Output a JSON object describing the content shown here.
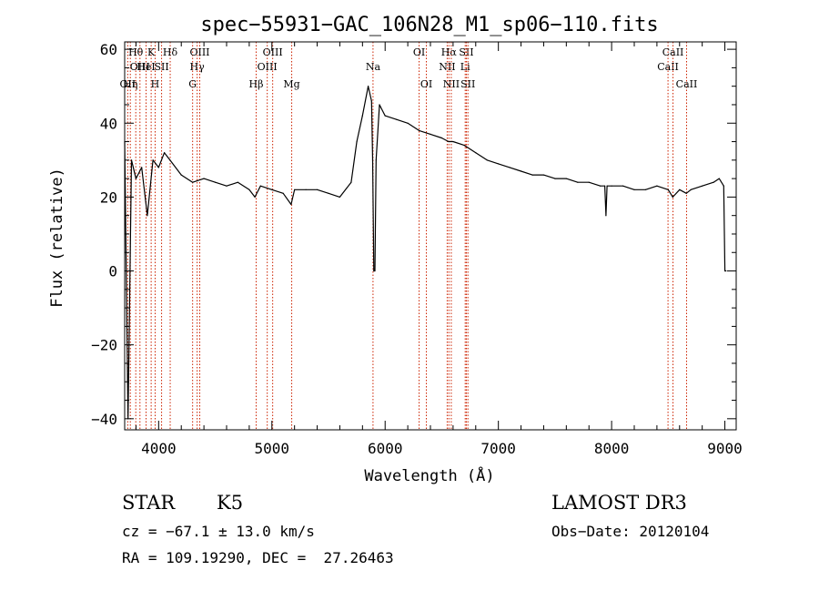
{
  "chart_data": {
    "type": "line",
    "title": "spec−55931−GAC_106N28_M1_sp06−110.fits",
    "xlabel": "Wavelength (Å)",
    "ylabel": "Flux (relative)",
    "xlim": [
      3700,
      9100
    ],
    "ylim": [
      -43,
      62
    ],
    "xticks": [
      4000,
      5000,
      6000,
      7000,
      8000,
      9000
    ],
    "xtick_labels": [
      "4000",
      "5000",
      "6000",
      "7000",
      "8000",
      "9000"
    ],
    "yticks": [
      -40,
      -20,
      0,
      20,
      40,
      60
    ],
    "ytick_labels": [
      "−40",
      "−20",
      "0",
      "20",
      "40",
      "60"
    ],
    "series": [
      {
        "name": "flux",
        "color": "#000000",
        "x": [
          3700,
          3730,
          3760,
          3800,
          3850,
          3900,
          3950,
          4000,
          4050,
          4100,
          4200,
          4300,
          4400,
          4500,
          4600,
          4700,
          4800,
          4850,
          4900,
          5000,
          5100,
          5170,
          5200,
          5300,
          5400,
          5500,
          5600,
          5700,
          5750,
          5800,
          5850,
          5880,
          5890,
          5900,
          5910,
          5920,
          5950,
          6000,
          6100,
          6200,
          6300,
          6400,
          6500,
          6560,
          6600,
          6700,
          6800,
          6900,
          7000,
          7100,
          7200,
          7300,
          7400,
          7500,
          7600,
          7700,
          7800,
          7900,
          7940,
          7950,
          7960,
          8000,
          8100,
          8200,
          8300,
          8400,
          8500,
          8540,
          8600,
          8660,
          8700,
          8800,
          8900,
          8950,
          8990,
          9000,
          9010
        ],
        "y": [
          35,
          -40,
          30,
          25,
          28,
          15,
          30,
          28,
          32,
          30,
          26,
          24,
          25,
          24,
          23,
          24,
          22,
          20,
          23,
          22,
          21,
          18,
          22,
          22,
          22,
          21,
          20,
          24,
          35,
          42,
          50,
          46,
          30,
          0,
          0,
          30,
          45,
          42,
          41,
          40,
          38,
          37,
          36,
          35,
          35,
          34,
          32,
          30,
          29,
          28,
          27,
          26,
          26,
          25,
          25,
          24,
          24,
          23,
          23,
          15,
          23,
          23,
          23,
          22,
          22,
          23,
          22,
          20,
          22,
          21,
          22,
          23,
          24,
          25,
          23,
          0,
          0
        ]
      }
    ],
    "lines": [
      {
        "x": 3727,
        "label": "OII",
        "row": 3
      },
      {
        "x": 3750,
        "label": "Hη",
        "row": 3
      },
      {
        "x": 3798,
        "label": "Hθ",
        "row": 1
      },
      {
        "x": 3835,
        "label": "OIII",
        "row": 2
      },
      {
        "x": 3889,
        "label": "HeI",
        "row": 2
      },
      {
        "x": 3934,
        "label": "K",
        "row": 1
      },
      {
        "x": 3969,
        "label": "H",
        "row": 3
      },
      {
        "x": 4026,
        "label": "SII",
        "row": 2
      },
      {
        "x": 4102,
        "label": "Hδ",
        "row": 1
      },
      {
        "x": 4300,
        "label": "G",
        "row": 3
      },
      {
        "x": 4340,
        "label": "Hγ",
        "row": 2
      },
      {
        "x": 4363,
        "label": "OIII",
        "row": 1
      },
      {
        "x": 4861,
        "label": "Hβ",
        "row": 3
      },
      {
        "x": 4959,
        "label": "OIII",
        "row": 2
      },
      {
        "x": 5007,
        "label": "OIII",
        "row": 1
      },
      {
        "x": 5175,
        "label": "Mg",
        "row": 3
      },
      {
        "x": 5893,
        "label": "Na",
        "row": 2
      },
      {
        "x": 6300,
        "label": "OI",
        "row": 1
      },
      {
        "x": 6364,
        "label": "OI",
        "row": 3
      },
      {
        "x": 6548,
        "label": "NII",
        "row": 2
      },
      {
        "x": 6563,
        "label": "Hα",
        "row": 1
      },
      {
        "x": 6584,
        "label": "NII",
        "row": 3
      },
      {
        "x": 6707,
        "label": "Li",
        "row": 2
      },
      {
        "x": 6717,
        "label": "SII",
        "row": 1
      },
      {
        "x": 6731,
        "label": "SII",
        "row": 3
      },
      {
        "x": 8498,
        "label": "CaII",
        "row": 2
      },
      {
        "x": 8542,
        "label": "CaII",
        "row": 1
      },
      {
        "x": 8662,
        "label": "CaII",
        "row": 3
      }
    ],
    "line_color": "#cc2200",
    "grid": false
  },
  "footer": {
    "object_class": "STAR",
    "subclass": "K5",
    "survey": "LAMOST DR3",
    "cz": "cz = −67.1 ± 13.0 km/s",
    "obs_date": "Obs−Date: 20120104",
    "coords": "RA = 109.19290, DEC =  27.26463"
  }
}
